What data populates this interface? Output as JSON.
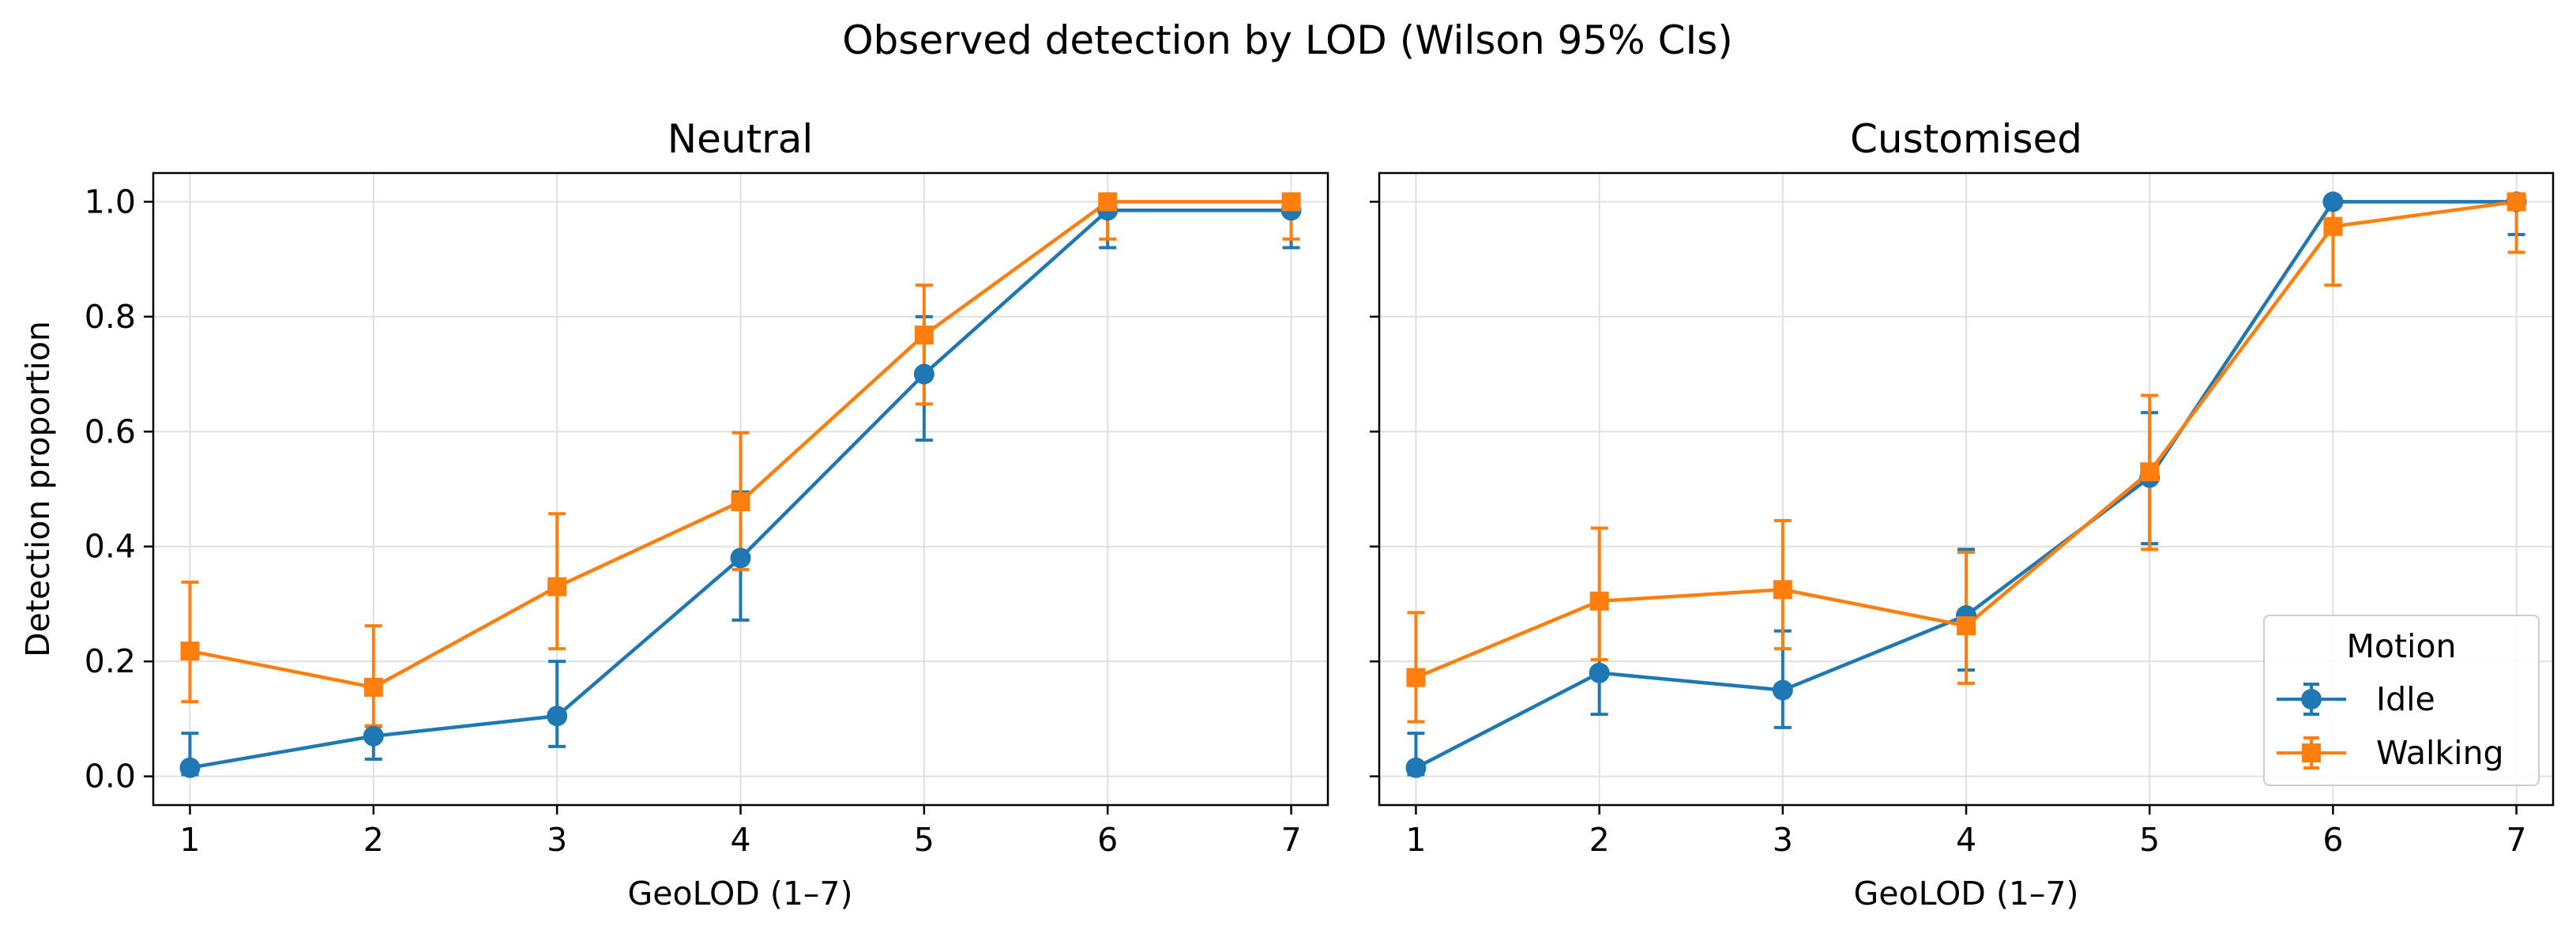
{
  "figure": {
    "title": "Observed detection by LOD (Wilson 95% CIs)"
  },
  "colors": {
    "idle": "#1f77b4",
    "walking": "#ff7f0e",
    "grid": "#e0e0e0",
    "axis": "#000000"
  },
  "chart_data": [
    {
      "type": "line",
      "title": "Neutral",
      "xlabel": "GeoLOD (1–7)",
      "ylabel": "Detection proportion",
      "x": [
        1,
        2,
        3,
        4,
        5,
        6,
        7
      ],
      "xlim": [
        0.8,
        7.2
      ],
      "ylim": [
        -0.05,
        1.05
      ],
      "xticks": [
        "1",
        "2",
        "3",
        "4",
        "5",
        "6",
        "7"
      ],
      "yticks": [
        "0.0",
        "0.2",
        "0.4",
        "0.6",
        "0.8",
        "1.0"
      ],
      "grid": true,
      "series": [
        {
          "name": "Idle",
          "marker": "circle",
          "values": [
            0.015,
            0.07,
            0.105,
            0.38,
            0.7,
            0.985,
            0.985
          ],
          "ci_low": [
            0.003,
            0.03,
            0.052,
            0.272,
            0.585,
            0.92,
            0.92
          ],
          "ci_high": [
            0.075,
            0.087,
            0.2,
            0.495,
            0.8,
            1.0,
            1.0
          ]
        },
        {
          "name": "Walking",
          "marker": "square",
          "values": [
            0.218,
            0.155,
            0.33,
            0.478,
            0.768,
            1.0,
            1.0
          ],
          "ci_low": [
            0.13,
            0.088,
            0.222,
            0.36,
            0.648,
            0.935,
            0.935
          ],
          "ci_high": [
            0.338,
            0.262,
            0.457,
            0.598,
            0.855,
            1.0,
            1.0
          ]
        }
      ]
    },
    {
      "type": "line",
      "title": "Customised",
      "xlabel": "GeoLOD (1–7)",
      "ylabel": "",
      "x": [
        1,
        2,
        3,
        4,
        5,
        6,
        7
      ],
      "xlim": [
        0.8,
        7.2
      ],
      "ylim": [
        -0.05,
        1.05
      ],
      "xticks": [
        "1",
        "2",
        "3",
        "4",
        "5",
        "6",
        "7"
      ],
      "yticks": [
        "0.0",
        "0.2",
        "0.4",
        "0.6",
        "0.8",
        "1.0"
      ],
      "grid": true,
      "legend": {
        "title": "Motion",
        "placement": "lower-right",
        "entries": [
          "Idle",
          "Walking"
        ]
      },
      "series": [
        {
          "name": "Idle",
          "marker": "circle",
          "values": [
            0.015,
            0.18,
            0.15,
            0.28,
            0.52,
            1.0,
            1.0
          ],
          "ci_low": [
            0.003,
            0.108,
            0.085,
            0.185,
            0.405,
            1.0,
            0.943
          ],
          "ci_high": [
            0.075,
            0.295,
            0.253,
            0.395,
            0.633,
            1.0,
            1.0
          ]
        },
        {
          "name": "Walking",
          "marker": "square",
          "values": [
            0.172,
            0.305,
            0.325,
            0.262,
            0.53,
            0.957,
            1.0
          ],
          "ci_low": [
            0.095,
            0.203,
            0.222,
            0.162,
            0.395,
            0.855,
            0.912
          ],
          "ci_high": [
            0.285,
            0.432,
            0.445,
            0.39,
            0.663,
            1.0,
            1.0
          ]
        }
      ]
    }
  ]
}
